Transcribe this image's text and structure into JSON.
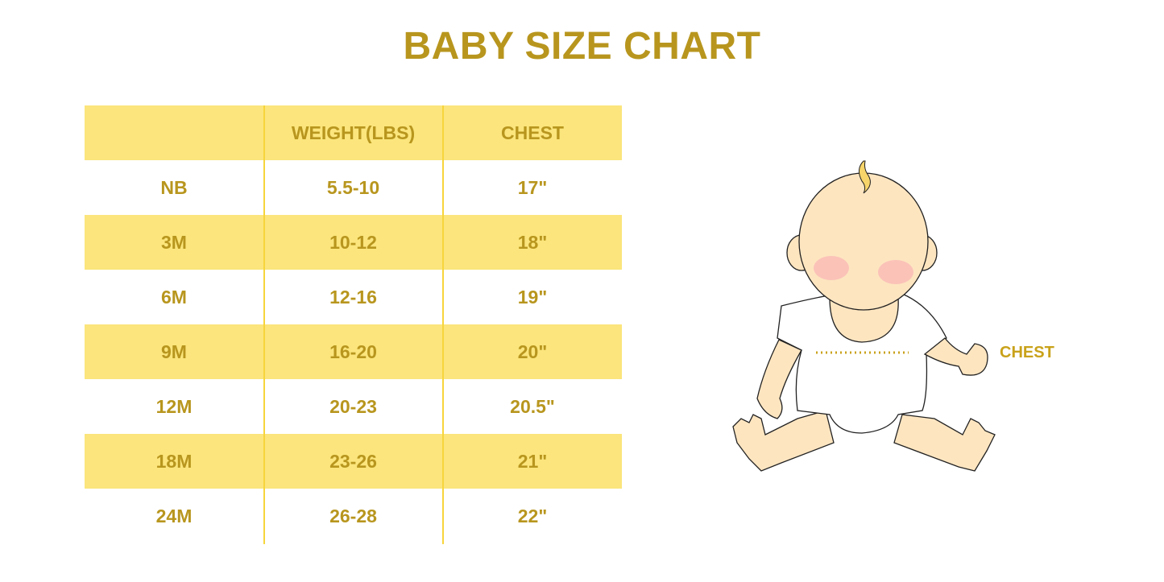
{
  "title": "BABY SIZE CHART",
  "table": {
    "headers": [
      "",
      "WEIGHT(LBS)",
      "CHEST"
    ],
    "rows": [
      [
        "NB",
        "5.5-10",
        "17\""
      ],
      [
        "3M",
        "10-12",
        "18\""
      ],
      [
        "6M",
        "12-16",
        "19\""
      ],
      [
        "9M",
        "16-20",
        "20\""
      ],
      [
        "12M",
        "20-23",
        "20.5\""
      ],
      [
        "18M",
        "23-26",
        "21\""
      ],
      [
        "24M",
        "26-28",
        "22\""
      ]
    ]
  },
  "illustration": {
    "chest_label": "CHEST"
  },
  "colors": {
    "accent_text": "#B8961E",
    "row_fill": "#FBE57C",
    "divider": "#F7D53C"
  }
}
